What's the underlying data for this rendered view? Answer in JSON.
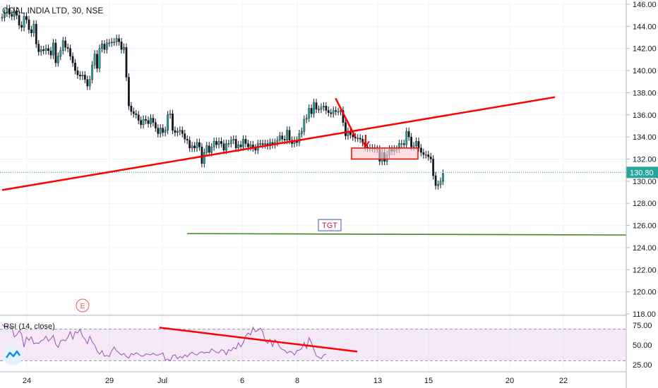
{
  "chart_data": [
    {
      "type": "candlestick",
      "title": "COAL INDIA LTD, 30, NSE",
      "x_tick_labels": [
        "24",
        "29",
        "Jul",
        "6",
        "8",
        "13",
        "15",
        "20",
        "22"
      ],
      "y_tick_labels": [
        "146.00",
        "144.00",
        "142.00",
        "140.00",
        "138.00",
        "136.00",
        "134.00",
        "132.00",
        "130.00",
        "128.00",
        "126.00",
        "124.00",
        "122.00",
        "120.00",
        "118.00"
      ],
      "ylim": [
        118,
        146
      ],
      "last_price": "130.80",
      "last_value": 130.8,
      "colors": {
        "up": "#26a69a",
        "down": "#ef5350",
        "bar_body": "#131722",
        "trendline": "#ff0000",
        "target_line": "#3a8a1e",
        "price_tag": "#26a69a",
        "rsi": "#9c4fb0"
      },
      "annotations": {
        "target_label": "TGT",
        "target_level": 125.2,
        "event_marker": "E",
        "descending_trendline": [
          [
            136.9,
            137.5
          ],
          [
            145.0,
            134.0
          ]
        ],
        "ascending_trendline": [
          [
            0.0,
            129.2
          ],
          [
            227.0,
            137.6
          ]
        ],
        "target_zone": [
          133.0,
          132.0
        ],
        "arrow": "down"
      },
      "series_close": [
        144.8,
        145.2,
        145.6,
        145.1,
        144.9,
        145.4,
        145.0,
        144.1,
        143.9,
        144.9,
        144.6,
        143.7,
        143.4,
        144.2,
        142.4,
        141.7,
        141.9,
        141.8,
        142.0,
        141.8,
        141.4,
        142.5,
        140.7,
        141.3,
        141.8,
        142.7,
        142.1,
        142.0,
        141.3,
        140.7,
        140.0,
        139.6,
        139.5,
        139.6,
        139.2,
        138.6,
        139.2,
        140.5,
        141.5,
        140.2,
        142.0,
        142.4,
        141.9,
        142.5,
        142.5,
        142.6,
        142.6,
        142.9,
        142.6,
        141.9,
        142.1,
        139.4,
        136.8,
        136.3,
        136.1,
        136.0,
        135.5,
        135.1,
        135.6,
        135.5,
        135.2,
        135.7,
        135.3,
        134.8,
        134.3,
        134.8,
        134.4,
        134.6,
        136.0,
        136.1,
        134.6,
        134.4,
        134.5,
        134.6,
        134.3,
        133.8,
        133.7,
        133.0,
        133.2,
        133.0,
        133.5,
        133.1,
        131.6,
        132.6,
        133.2,
        132.6,
        133.1,
        133.6,
        133.3,
        133.6,
        133.4,
        132.8,
        133.4,
        133.4,
        133.7,
        133.8,
        133.0,
        133.3,
        133.1,
        133.8,
        133.4,
        133.1,
        133.3,
        133.0,
        132.8,
        133.4,
        133.4,
        133.3,
        133.4,
        133.2,
        133.5,
        133.3,
        133.5,
        133.7,
        134.1,
        133.8,
        133.7,
        134.6,
        133.7,
        133.4,
        133.7,
        133.5,
        134.3,
        134.5,
        135.6,
        135.7,
        136.6,
        136.1,
        137.1,
        136.5,
        136.5,
        136.7,
        136.8,
        136.4,
        136.2,
        136.1,
        136.4,
        136.3,
        136.3,
        136.4,
        135.3,
        134.1,
        134.5,
        134.2,
        134.0,
        133.9,
        133.9,
        133.8,
        133.5,
        133.1,
        133.0,
        133.0,
        133.0,
        132.9,
        132.9,
        131.8,
        132.6,
        131.8,
        132.4,
        132.9,
        132.7,
        132.9,
        132.9,
        133.4,
        133.4,
        133.3,
        134.5,
        134.0,
        133.1,
        133.2,
        133.6,
        133.0,
        132.6,
        132.4,
        132.4,
        132.2,
        132.0,
        130.5,
        129.6,
        129.7,
        130.0,
        130.7
      ]
    },
    {
      "type": "line",
      "label": "RSI (14, close)",
      "y_tick_labels": [
        "75.00",
        "50.00",
        "25.00"
      ],
      "ylim": [
        20,
        78
      ],
      "bands": [
        70,
        30
      ],
      "divergence_line": [
        [
          64.6,
          72
        ],
        [
          145.8,
          41.6
        ]
      ],
      "values": [
        76.4,
        72.7,
        73.4,
        72.9,
        72.9,
        60.1,
        62.8,
        68.0,
        63.8,
        47.4,
        59.9,
        55.9,
        60.3,
        51.6,
        52.6,
        52.0,
        55.4,
        56.6,
        61.2,
        54.8,
        57.8,
        62.1,
        51.0,
        47.0,
        55.1,
        56.4,
        55.3,
        59.8,
        67.0,
        57.3,
        66.9,
        65.1,
        70.0,
        60.8,
        57.4,
        51.6,
        61.0,
        53.8,
        49.9,
        42.2,
        38.4,
        42.8,
        35.7,
        36.8,
        35.3,
        42.8,
        47.5,
        42.4,
        40.1,
        37.2,
        39.2,
        35.3,
        33.3,
        39.1,
        37.5,
        40.2,
        38.5,
        36.1,
        35.8,
        38.8,
        38.2,
        37.4,
        39.6,
        37.2,
        37.3,
        38.3,
        40.0,
        30.9,
        32.2,
        29.7,
        36.4,
        37.5,
        32.5,
        35.5,
        33.6,
        37.4,
        35.0,
        38.9,
        40.8,
        38.3,
        37.2,
        40.3,
        41.3,
        39.8,
        40.8,
        40.1,
        45.2,
        42.8,
        40.6,
        40.0,
        44.1,
        43.0,
        37.6,
        44.1,
        42.6,
        46.9,
        45.0,
        52.7,
        47.8,
        52.8,
        61.7,
        65.2,
        62.8,
        72.5,
        66.7,
        68.6,
        71.3,
        66.4,
        55.0,
        52.2,
        57.3,
        48.1,
        56.7,
        53.1,
        47.1,
        44.4,
        43.3,
        39.7,
        41.8,
        41.0,
        37.3,
        42.9,
        43.5,
        45.5,
        53.2,
        45.6,
        59.2,
        52.7,
        44.1,
        36.2,
        34.5,
        32.7,
        37.2,
        38.3
      ]
    }
  ]
}
